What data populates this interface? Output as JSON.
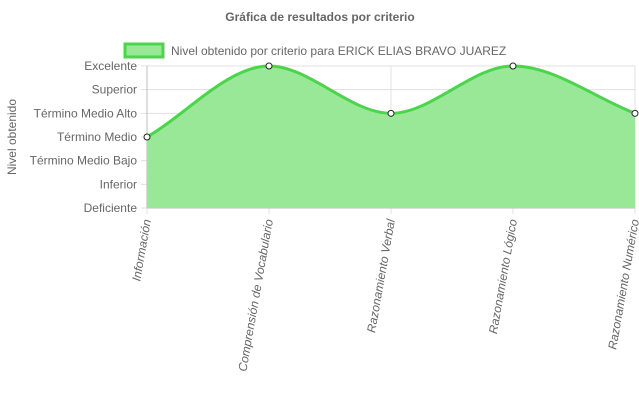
{
  "chart_data": {
    "type": "area",
    "title": "Gráfica de resultados por criterio",
    "ylabel": "Nivel obtenido",
    "xlabel": "",
    "y_levels": [
      "Deficiente",
      "Inferior",
      "Término Medio Bajo",
      "Término Medio",
      "Término Medio Alto",
      "Superior",
      "Excelente"
    ],
    "ylim": [
      0,
      6
    ],
    "categories": [
      "Información",
      "Comprensión de Vocabulario",
      "Razonamiento Verbal",
      "Razonamiento Lógico",
      "Razonamiento Numérico"
    ],
    "series": [
      {
        "name": "Nivel obtenido por criterio para ERICK ELIAS BRAVO JUAREZ",
        "values": [
          3,
          6,
          4,
          6,
          4
        ],
        "value_labels": [
          "Término Medio",
          "Excelente",
          "Término Medio Alto",
          "Excelente",
          "Término Medio Alto"
        ]
      }
    ],
    "grid": true,
    "legend_position": "top",
    "colors": {
      "fill": "#98e898",
      "stroke": "#4cd44c",
      "point_fill": "#ffffff",
      "point_stroke": "#222222",
      "grid": "#e0e0e0",
      "text": "#666666"
    }
  }
}
